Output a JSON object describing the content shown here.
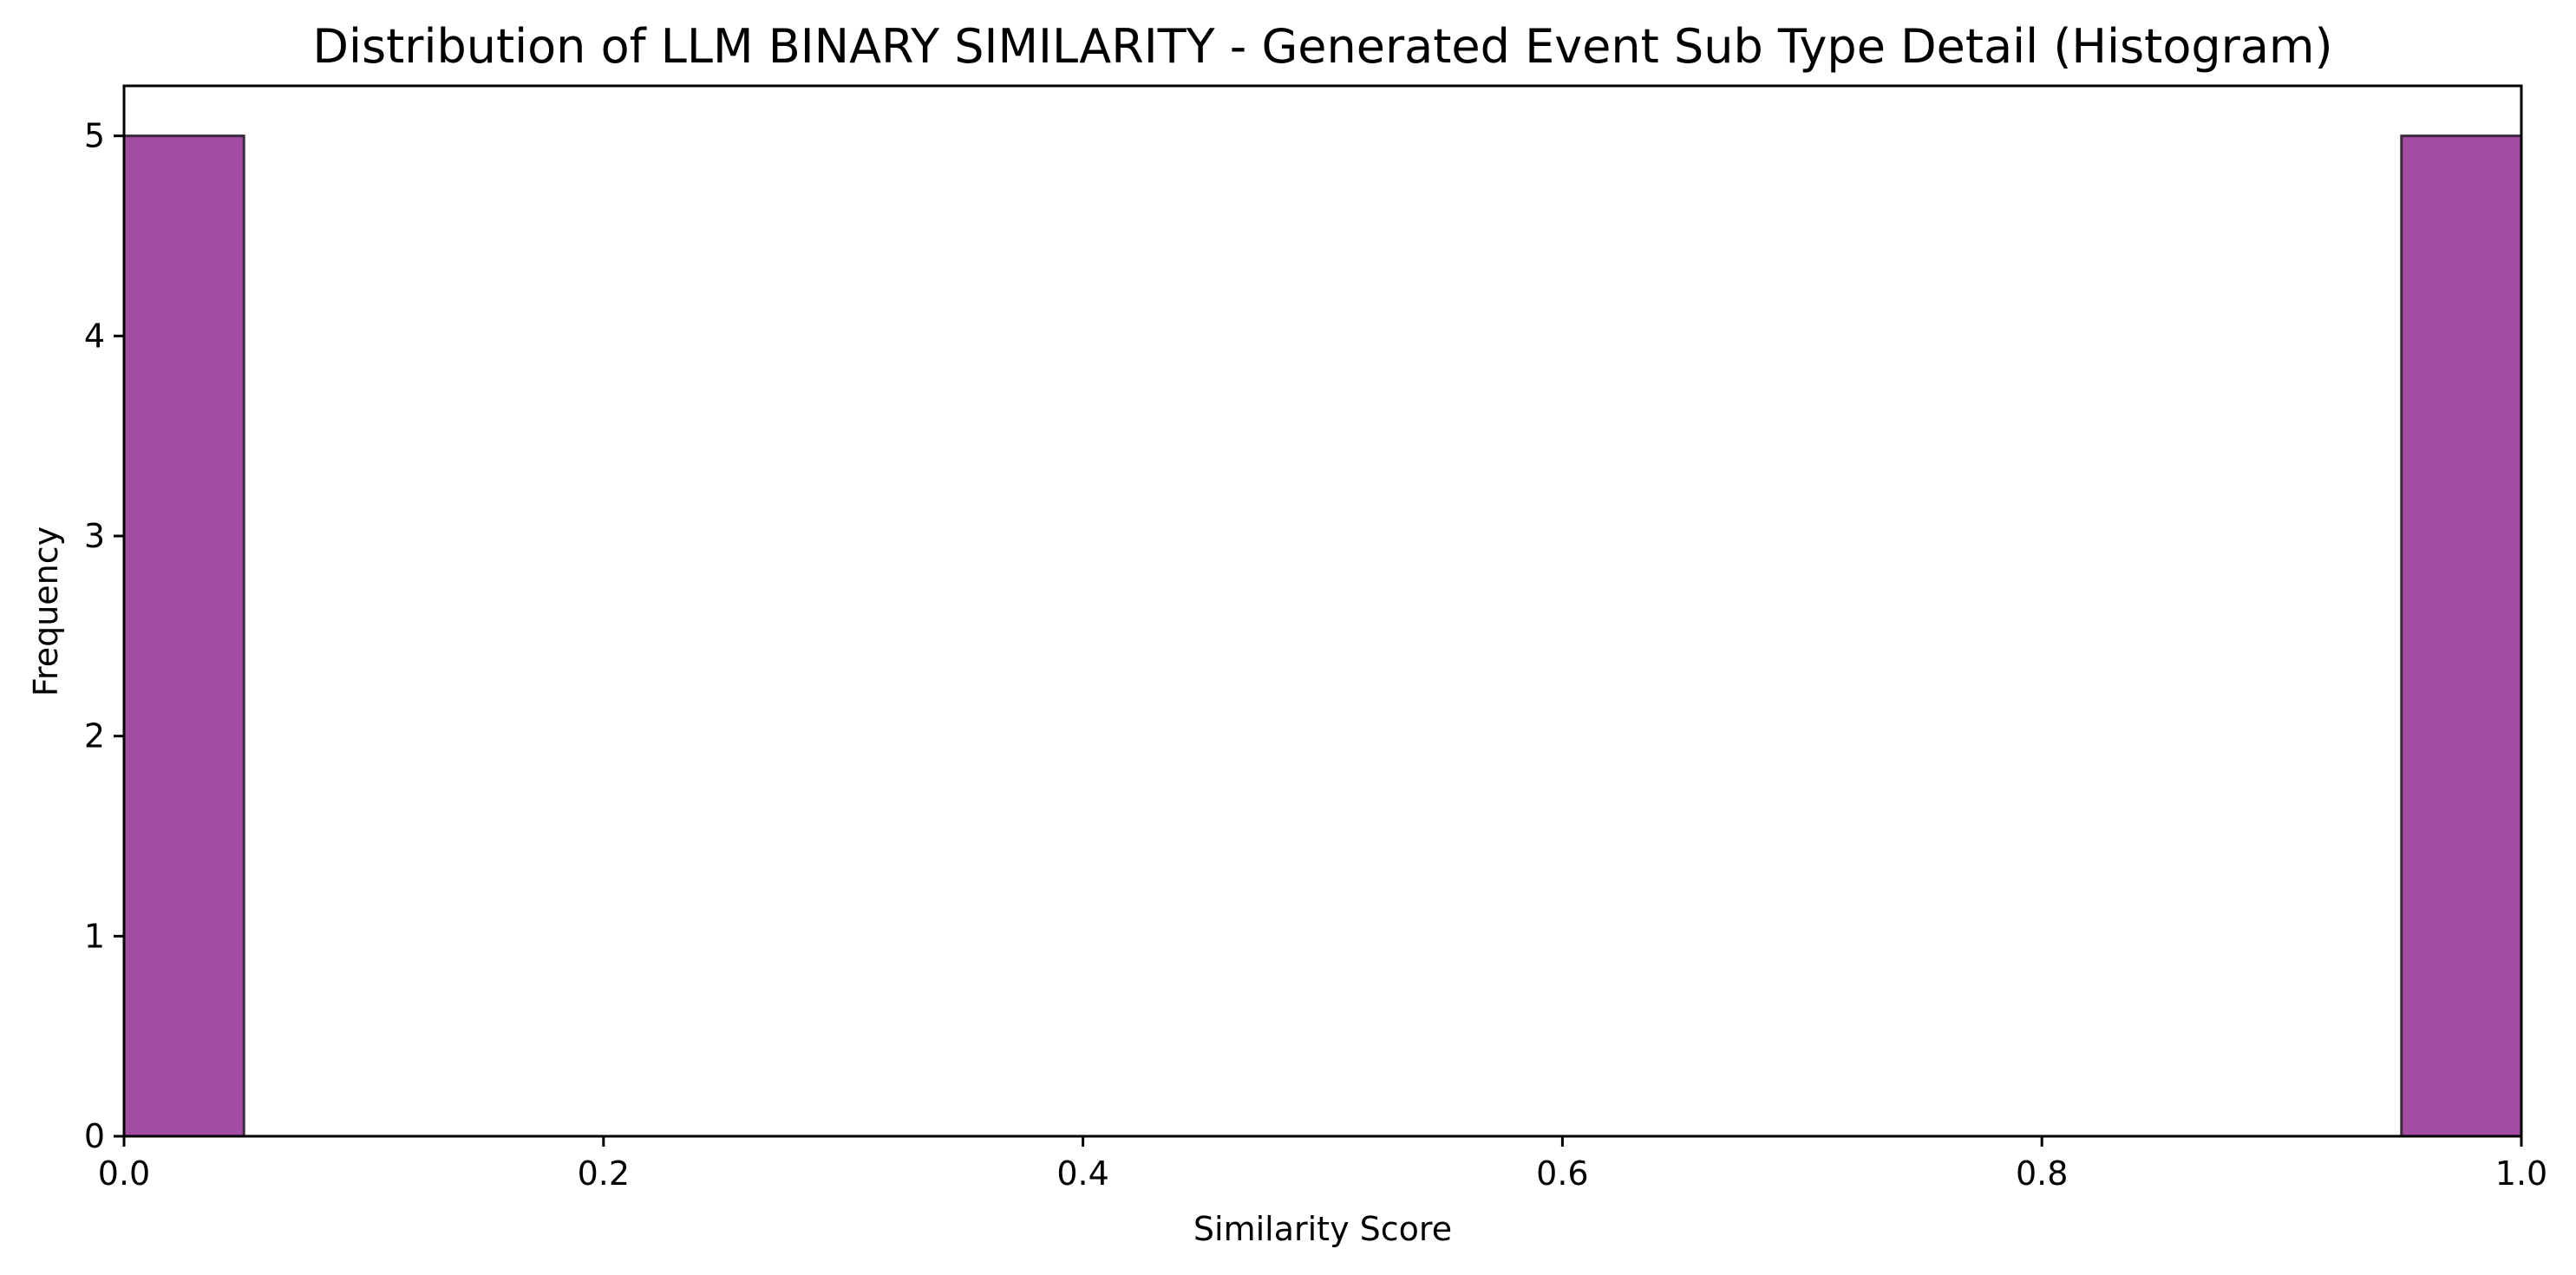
{
  "chart_data": {
    "type": "bar",
    "title": "Distribution of LLM BINARY SIMILARITY - Generated Event Sub Type Detail (Histogram)",
    "xlabel": "Similarity Score",
    "ylabel": "Frequency",
    "xlim": [
      0,
      1
    ],
    "ylim": [
      0,
      5.25
    ],
    "xticks": [
      "0.0",
      "0.2",
      "0.4",
      "0.6",
      "0.8",
      "1.0"
    ],
    "yticks": [
      "0",
      "1",
      "2",
      "3",
      "4",
      "5"
    ],
    "bin_width": 0.05,
    "bins": [
      {
        "start": 0.0,
        "end": 0.05,
        "count": 5
      },
      {
        "start": 0.95,
        "end": 1.0,
        "count": 5
      }
    ],
    "bar_color": "#a34ca3",
    "edge_color": "#3a2a3a",
    "grid": false,
    "legend": "none"
  }
}
